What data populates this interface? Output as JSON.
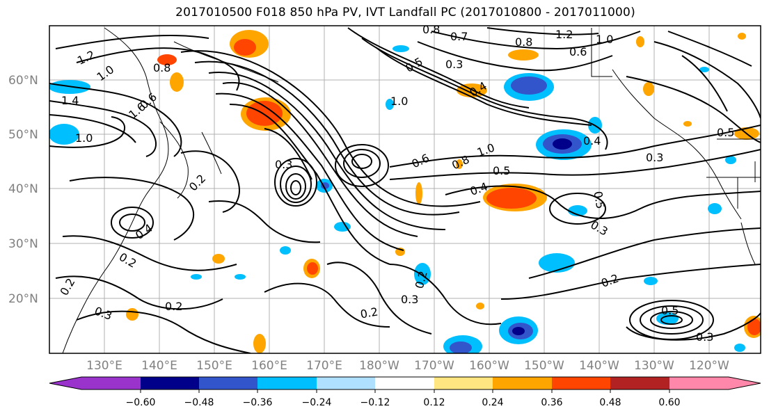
{
  "title": "2017010500 F018 850 hPa PV, IVT Landfall PC (2017010800 - 2017011000)",
  "map": {
    "lat_labels": [
      "60°N",
      "50°N",
      "40°N",
      "30°N",
      "20°N"
    ],
    "lon_labels": [
      "130°E",
      "140°E",
      "150°E",
      "160°E",
      "170°E",
      "180°W",
      "170°W",
      "160°W",
      "150°W",
      "140°W",
      "130°W",
      "120°W"
    ],
    "contour_labels": [
      "1.2",
      "0.8",
      "1.0",
      "1.4",
      "0.6",
      "1.6",
      "1.0",
      "0.2",
      "0.4",
      "0.3",
      "0.2",
      "0.2",
      "0.3",
      "0.2",
      "0.8",
      "0.7",
      "0.3",
      "0.5",
      "0.4",
      "1.0",
      "0.6",
      "0.8",
      "1.0",
      "0.5",
      "0.4",
      "0.3",
      "0.2",
      "0.2",
      "0.3",
      "0.5",
      "0.4",
      "0.3",
      "0.8",
      "1.0",
      "1.2",
      "0.6",
      "0.5",
      "0.5",
      "0.2",
      "0.3"
    ]
  },
  "colorbar": {
    "ticks": [
      "−0.60",
      "−0.48",
      "−0.36",
      "−0.24",
      "−0.12",
      "0.12",
      "0.24",
      "0.36",
      "0.48",
      "0.60"
    ],
    "colors": [
      "#9933cc",
      "#00008b",
      "#3355cc",
      "#00bfff",
      "#b0e0ff",
      "#ffffff",
      "#ffe680",
      "#ffa500",
      "#ff4500",
      "#b22222",
      "#ff88aa"
    ]
  }
}
